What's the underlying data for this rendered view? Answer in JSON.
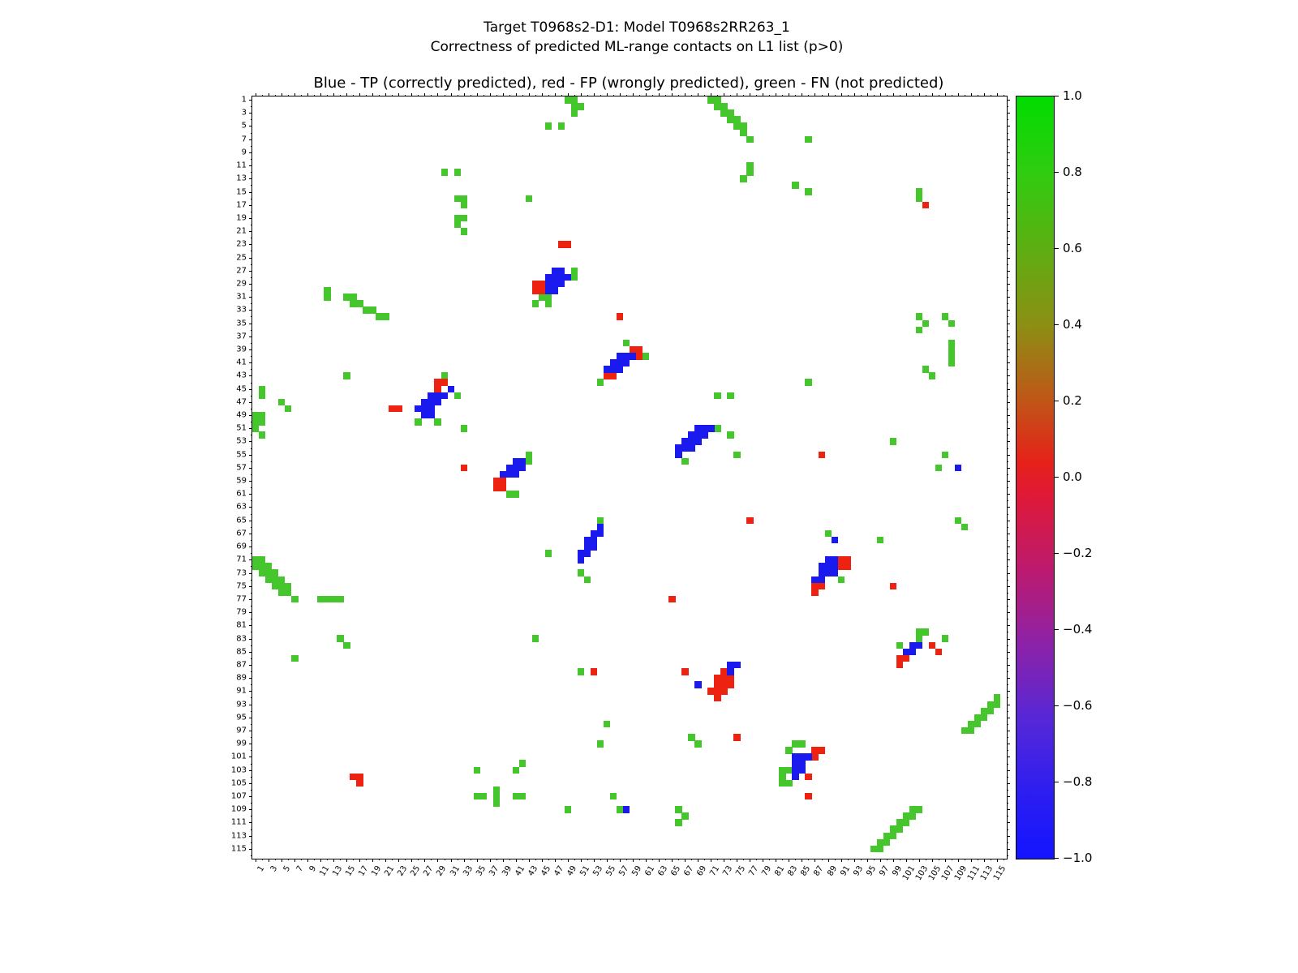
{
  "figure": {
    "suptitle_line1": "Target T0968s2-D1: Model T0968s2RR263_1",
    "suptitle_line2": "Correctness of predicted ML-range contacts on L1 list (p>0)",
    "axes_title": "Blue - TP (correctly predicted), red - FP (wrongly predicted), green - FN (not predicted)"
  },
  "chart_data": {
    "type": "heatmap",
    "description": "Protein residue-residue contact map showing correctness of predicted ML-range contacts; cells are residue pairs (x,y) classified as TP, FP or FN",
    "axis_units": 116,
    "x_tick_labels": [
      1,
      3,
      5,
      7,
      9,
      11,
      13,
      15,
      17,
      19,
      21,
      23,
      25,
      27,
      29,
      31,
      33,
      35,
      37,
      39,
      41,
      43,
      45,
      47,
      49,
      51,
      53,
      55,
      57,
      59,
      61,
      63,
      65,
      67,
      69,
      71,
      73,
      75,
      77,
      79,
      81,
      83,
      85,
      87,
      89,
      91,
      93,
      95,
      97,
      99,
      101,
      103,
      105,
      107,
      109,
      111,
      113,
      115
    ],
    "y_tick_labels": [
      1,
      3,
      5,
      7,
      9,
      11,
      13,
      15,
      17,
      19,
      21,
      23,
      25,
      27,
      29,
      31,
      33,
      35,
      37,
      39,
      41,
      43,
      45,
      47,
      49,
      51,
      53,
      55,
      57,
      59,
      61,
      63,
      65,
      67,
      69,
      71,
      73,
      75,
      77,
      79,
      81,
      83,
      85,
      87,
      89,
      91,
      93,
      95,
      97,
      99,
      101,
      103,
      105,
      107,
      109,
      111,
      113,
      115
    ],
    "colors": {
      "TP": "#1a1aee",
      "FP": "#ee2211",
      "FN": "#44c62c"
    },
    "legend": {
      "TP": "correctly predicted",
      "FP": "wrongly predicted",
      "FN": "not predicted"
    },
    "colorbar": {
      "ticks": [
        "1.0",
        "0.8",
        "0.6",
        "0.4",
        "0.2",
        "0.0",
        "−0.2",
        "−0.4",
        "−0.6",
        "−0.8",
        "−1.0"
      ],
      "vmin": -1.0,
      "vmax": 1.0,
      "gradient_stops": [
        [
          "0%",
          "#00dc00"
        ],
        [
          "10%",
          "#30cc10"
        ],
        [
          "20%",
          "#5dae12"
        ],
        [
          "30%",
          "#8c8f14"
        ],
        [
          "40%",
          "#c05518"
        ],
        [
          "48%",
          "#e62119"
        ],
        [
          "52%",
          "#e01935"
        ],
        [
          "62%",
          "#bd1a6e"
        ],
        [
          "72%",
          "#8c22a8"
        ],
        [
          "82%",
          "#5527d8"
        ],
        [
          "92%",
          "#2a1df2"
        ],
        [
          "100%",
          "#1414ff"
        ]
      ]
    },
    "cells": {
      "FN": [
        [
          49,
          1
        ],
        [
          50,
          1
        ],
        [
          50,
          2
        ],
        [
          51,
          2
        ],
        [
          50,
          3
        ],
        [
          46,
          5
        ],
        [
          48,
          5
        ],
        [
          71,
          1
        ],
        [
          72,
          1
        ],
        [
          72,
          2
        ],
        [
          73,
          2
        ],
        [
          73,
          3
        ],
        [
          74,
          3
        ],
        [
          74,
          4
        ],
        [
          75,
          4
        ],
        [
          75,
          5
        ],
        [
          76,
          5
        ],
        [
          76,
          6
        ],
        [
          77,
          7
        ],
        [
          86,
          7
        ],
        [
          77,
          11
        ],
        [
          77,
          12
        ],
        [
          76,
          13
        ],
        [
          30,
          12
        ],
        [
          32,
          12
        ],
        [
          84,
          14
        ],
        [
          86,
          15
        ],
        [
          103,
          15
        ],
        [
          103,
          16
        ],
        [
          43,
          16
        ],
        [
          32,
          16
        ],
        [
          33,
          16
        ],
        [
          33,
          17
        ],
        [
          32,
          19
        ],
        [
          33,
          19
        ],
        [
          32,
          20
        ],
        [
          33,
          21
        ],
        [
          50,
          27
        ],
        [
          50,
          28
        ],
        [
          45,
          31
        ],
        [
          46,
          31
        ],
        [
          44,
          32
        ],
        [
          46,
          32
        ],
        [
          12,
          30
        ],
        [
          12,
          31
        ],
        [
          15,
          31
        ],
        [
          16,
          31
        ],
        [
          16,
          32
        ],
        [
          17,
          32
        ],
        [
          18,
          33
        ],
        [
          19,
          33
        ],
        [
          20,
          34
        ],
        [
          21,
          34
        ],
        [
          103,
          34
        ],
        [
          107,
          34
        ],
        [
          104,
          35
        ],
        [
          108,
          35
        ],
        [
          103,
          36
        ],
        [
          108,
          38
        ],
        [
          108,
          39
        ],
        [
          108,
          40
        ],
        [
          108,
          41
        ],
        [
          104,
          42
        ],
        [
          105,
          43
        ],
        [
          58,
          38
        ],
        [
          61,
          40
        ],
        [
          54,
          44
        ],
        [
          15,
          43
        ],
        [
          30,
          43
        ],
        [
          32,
          46
        ],
        [
          26,
          50
        ],
        [
          29,
          50
        ],
        [
          33,
          51
        ],
        [
          2,
          45
        ],
        [
          2,
          46
        ],
        [
          5,
          47
        ],
        [
          6,
          48
        ],
        [
          1,
          49
        ],
        [
          2,
          49
        ],
        [
          1,
          50
        ],
        [
          2,
          50
        ],
        [
          1,
          51
        ],
        [
          2,
          52
        ],
        [
          72,
          46
        ],
        [
          74,
          46
        ],
        [
          86,
          44
        ],
        [
          72,
          51
        ],
        [
          74,
          52
        ],
        [
          75,
          55
        ],
        [
          67,
          56
        ],
        [
          99,
          53
        ],
        [
          107,
          55
        ],
        [
          106,
          57
        ],
        [
          43,
          55
        ],
        [
          43,
          56
        ],
        [
          40,
          61
        ],
        [
          41,
          61
        ],
        [
          109,
          65
        ],
        [
          110,
          66
        ],
        [
          97,
          68
        ],
        [
          54,
          65
        ],
        [
          46,
          70
        ],
        [
          51,
          73
        ],
        [
          52,
          74
        ],
        [
          1,
          71
        ],
        [
          2,
          71
        ],
        [
          1,
          72
        ],
        [
          2,
          72
        ],
        [
          3,
          72
        ],
        [
          2,
          73
        ],
        [
          3,
          73
        ],
        [
          4,
          73
        ],
        [
          3,
          74
        ],
        [
          4,
          74
        ],
        [
          5,
          74
        ],
        [
          4,
          75
        ],
        [
          5,
          75
        ],
        [
          6,
          75
        ],
        [
          5,
          76
        ],
        [
          6,
          76
        ],
        [
          7,
          77
        ],
        [
          11,
          77
        ],
        [
          12,
          77
        ],
        [
          13,
          77
        ],
        [
          14,
          77
        ],
        [
          89,
          67
        ],
        [
          91,
          74
        ],
        [
          14,
          83
        ],
        [
          15,
          84
        ],
        [
          7,
          86
        ],
        [
          44,
          83
        ],
        [
          103,
          82
        ],
        [
          104,
          82
        ],
        [
          103,
          83
        ],
        [
          107,
          83
        ],
        [
          100,
          84
        ],
        [
          51,
          88
        ],
        [
          115,
          92
        ],
        [
          114,
          93
        ],
        [
          115,
          93
        ],
        [
          113,
          94
        ],
        [
          114,
          94
        ],
        [
          112,
          95
        ],
        [
          113,
          95
        ],
        [
          111,
          96
        ],
        [
          112,
          96
        ],
        [
          110,
          97
        ],
        [
          111,
          97
        ],
        [
          55,
          96
        ],
        [
          68,
          98
        ],
        [
          69,
          99
        ],
        [
          54,
          99
        ],
        [
          84,
          99
        ],
        [
          85,
          99
        ],
        [
          83,
          100
        ],
        [
          82,
          103
        ],
        [
          83,
          103
        ],
        [
          82,
          104
        ],
        [
          82,
          105
        ],
        [
          83,
          105
        ],
        [
          42,
          102
        ],
        [
          41,
          103
        ],
        [
          35,
          103
        ],
        [
          35,
          107
        ],
        [
          36,
          107
        ],
        [
          38,
          106
        ],
        [
          38,
          107
        ],
        [
          38,
          108
        ],
        [
          41,
          107
        ],
        [
          42,
          107
        ],
        [
          56,
          107
        ],
        [
          57,
          109
        ],
        [
          49,
          109
        ],
        [
          66,
          109
        ],
        [
          67,
          110
        ],
        [
          66,
          111
        ],
        [
          102,
          109
        ],
        [
          103,
          109
        ],
        [
          101,
          110
        ],
        [
          102,
          110
        ],
        [
          100,
          111
        ],
        [
          101,
          111
        ],
        [
          99,
          112
        ],
        [
          100,
          112
        ],
        [
          98,
          113
        ],
        [
          99,
          113
        ],
        [
          97,
          114
        ],
        [
          98,
          114
        ],
        [
          96,
          115
        ],
        [
          97,
          115
        ]
      ],
      "FP": [
        [
          48,
          23
        ],
        [
          49,
          23
        ],
        [
          104,
          17
        ],
        [
          44,
          29
        ],
        [
          45,
          29
        ],
        [
          44,
          30
        ],
        [
          45,
          30
        ],
        [
          57,
          34
        ],
        [
          59,
          39
        ],
        [
          60,
          39
        ],
        [
          60,
          40
        ],
        [
          55,
          43
        ],
        [
          56,
          43
        ],
        [
          29,
          44
        ],
        [
          30,
          44
        ],
        [
          29,
          45
        ],
        [
          22,
          48
        ],
        [
          23,
          48
        ],
        [
          88,
          55
        ],
        [
          33,
          57
        ],
        [
          38,
          59
        ],
        [
          39,
          59
        ],
        [
          38,
          60
        ],
        [
          39,
          60
        ],
        [
          77,
          65
        ],
        [
          91,
          71
        ],
        [
          92,
          71
        ],
        [
          91,
          72
        ],
        [
          92,
          72
        ],
        [
          87,
          75
        ],
        [
          88,
          75
        ],
        [
          87,
          76
        ],
        [
          99,
          75
        ],
        [
          65,
          77
        ],
        [
          105,
          84
        ],
        [
          106,
          85
        ],
        [
          100,
          86
        ],
        [
          101,
          86
        ],
        [
          100,
          87
        ],
        [
          53,
          88
        ],
        [
          67,
          88
        ],
        [
          73,
          88
        ],
        [
          72,
          89
        ],
        [
          73,
          89
        ],
        [
          74,
          89
        ],
        [
          72,
          90
        ],
        [
          73,
          90
        ],
        [
          74,
          90
        ],
        [
          71,
          91
        ],
        [
          72,
          91
        ],
        [
          73,
          91
        ],
        [
          72,
          92
        ],
        [
          75,
          98
        ],
        [
          87,
          100
        ],
        [
          88,
          100
        ],
        [
          87,
          101
        ],
        [
          86,
          104
        ],
        [
          86,
          107
        ],
        [
          16,
          104
        ],
        [
          17,
          104
        ],
        [
          17,
          105
        ]
      ],
      "TP": [
        [
          47,
          27
        ],
        [
          48,
          27
        ],
        [
          46,
          28
        ],
        [
          47,
          28
        ],
        [
          48,
          28
        ],
        [
          49,
          28
        ],
        [
          46,
          29
        ],
        [
          47,
          29
        ],
        [
          48,
          29
        ],
        [
          46,
          30
        ],
        [
          47,
          30
        ],
        [
          57,
          40
        ],
        [
          58,
          40
        ],
        [
          59,
          40
        ],
        [
          56,
          41
        ],
        [
          57,
          41
        ],
        [
          58,
          41
        ],
        [
          55,
          42
        ],
        [
          56,
          42
        ],
        [
          57,
          42
        ],
        [
          31,
          45
        ],
        [
          28,
          46
        ],
        [
          29,
          46
        ],
        [
          30,
          46
        ],
        [
          27,
          47
        ],
        [
          28,
          47
        ],
        [
          29,
          47
        ],
        [
          26,
          48
        ],
        [
          27,
          48
        ],
        [
          28,
          48
        ],
        [
          27,
          49
        ],
        [
          28,
          49
        ],
        [
          69,
          51
        ],
        [
          70,
          51
        ],
        [
          71,
          51
        ],
        [
          68,
          52
        ],
        [
          69,
          52
        ],
        [
          70,
          52
        ],
        [
          67,
          53
        ],
        [
          68,
          53
        ],
        [
          69,
          53
        ],
        [
          66,
          54
        ],
        [
          67,
          54
        ],
        [
          68,
          54
        ],
        [
          66,
          55
        ],
        [
          41,
          56
        ],
        [
          42,
          56
        ],
        [
          40,
          57
        ],
        [
          41,
          57
        ],
        [
          42,
          57
        ],
        [
          39,
          58
        ],
        [
          40,
          58
        ],
        [
          41,
          58
        ],
        [
          109,
          57
        ],
        [
          54,
          66
        ],
        [
          53,
          67
        ],
        [
          54,
          67
        ],
        [
          52,
          68
        ],
        [
          53,
          68
        ],
        [
          52,
          69
        ],
        [
          53,
          69
        ],
        [
          51,
          70
        ],
        [
          52,
          70
        ],
        [
          51,
          71
        ],
        [
          90,
          68
        ],
        [
          89,
          71
        ],
        [
          90,
          71
        ],
        [
          88,
          72
        ],
        [
          89,
          72
        ],
        [
          90,
          72
        ],
        [
          88,
          73
        ],
        [
          89,
          73
        ],
        [
          90,
          73
        ],
        [
          87,
          74
        ],
        [
          88,
          74
        ],
        [
          102,
          84
        ],
        [
          103,
          84
        ],
        [
          101,
          85
        ],
        [
          102,
          85
        ],
        [
          74,
          87
        ],
        [
          75,
          87
        ],
        [
          74,
          88
        ],
        [
          69,
          90
        ],
        [
          84,
          101
        ],
        [
          85,
          101
        ],
        [
          86,
          101
        ],
        [
          84,
          102
        ],
        [
          85,
          102
        ],
        [
          84,
          103
        ],
        [
          85,
          103
        ],
        [
          84,
          104
        ],
        [
          58,
          109
        ]
      ]
    }
  }
}
